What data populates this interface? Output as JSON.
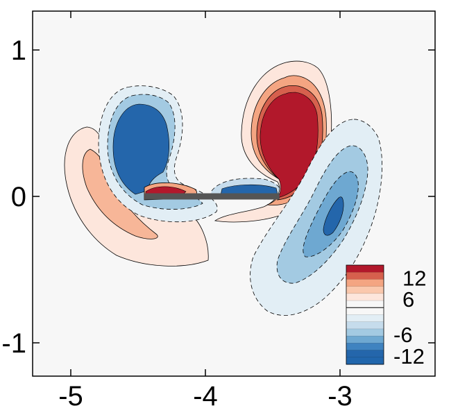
{
  "chart_data": {
    "type": "contour",
    "title": "",
    "xlabel": "",
    "ylabel": "",
    "xlim": [
      -5.3,
      -2.3
    ],
    "ylim": [
      -1.25,
      1.25
    ],
    "x_ticks": [
      "-5",
      "-4",
      "-3"
    ],
    "x_tick_values": [
      -5,
      -4,
      -3
    ],
    "y_ticks": [
      "1",
      "0",
      "-1"
    ],
    "y_tick_values": [
      1,
      0,
      -1
    ],
    "grid": false,
    "legend_placement": "bottom-right",
    "colorbar": {
      "labels": [
        "12",
        "6",
        "-6",
        "-12"
      ],
      "label_values": [
        12,
        6,
        -6,
        -12
      ],
      "levels_top_to_bottom": [
        14,
        12,
        10,
        8,
        6,
        4,
        2,
        -2,
        -4,
        -6,
        -8,
        -10,
        -12,
        -14
      ],
      "colors": [
        "#b2182b",
        "#d6604d",
        "#f4a582",
        "#fac8ad",
        "#fde6dc",
        "#f7f7f7",
        "#f7f7f7",
        "#e2eef5",
        "#c6dcec",
        "#a3cae2",
        "#6ea8d1",
        "#3f83c0",
        "#2466ab",
        "#2166ac"
      ]
    },
    "plate": {
      "x": [
        -4.45,
        -3.45
      ],
      "y": 0,
      "color": "#555555"
    },
    "regions": [
      {
        "name": "positive-outer-left",
        "sign": "positive",
        "peak": 4,
        "center": [
          -4.9,
          0.0
        ]
      },
      {
        "name": "negative-left-core",
        "sign": "negative",
        "peak": -14,
        "center": [
          -4.45,
          0.35
        ]
      },
      {
        "name": "positive-left-tip",
        "sign": "positive",
        "peak": 14,
        "center": [
          -4.35,
          0.04
        ]
      },
      {
        "name": "negative-mid",
        "sign": "negative",
        "peak": -8,
        "center": [
          -3.75,
          0.03
        ]
      },
      {
        "name": "positive-right-core",
        "sign": "positive",
        "peak": 14,
        "center": [
          -3.4,
          0.33
        ]
      },
      {
        "name": "negative-right-lobe",
        "sign": "negative",
        "peak": -12,
        "center": [
          -3.0,
          -0.2
        ]
      }
    ],
    "colors": {
      "background": "#f7f7f7",
      "red_core": "#b2182b",
      "blue_core": "#2466ab"
    }
  }
}
